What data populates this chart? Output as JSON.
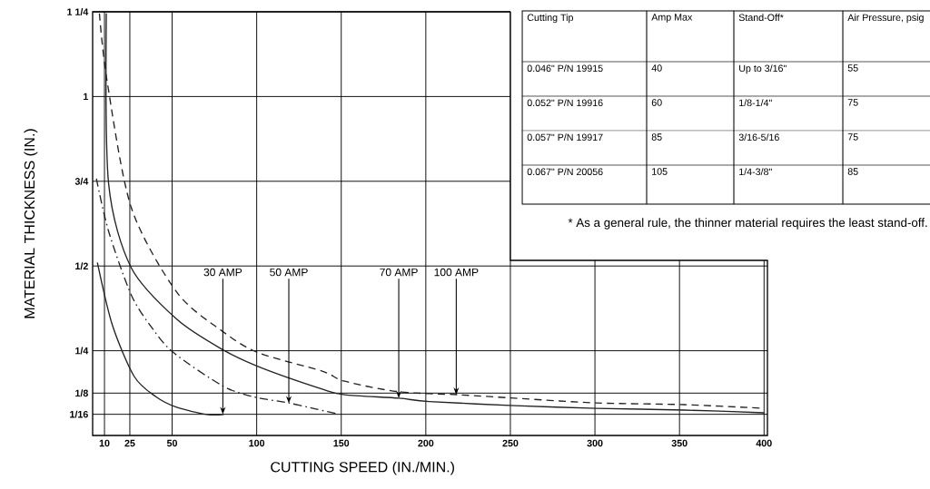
{
  "chart_data": [
    {
      "type": "line",
      "xlabel": "CUTTING SPEED (IN./MIN.)",
      "ylabel": "MATERIAL THICKNESS (IN.)",
      "xlim": [
        3,
        402
      ],
      "ylim": [
        0,
        1.25
      ],
      "xticks": [
        10,
        25,
        50,
        100,
        150,
        200,
        250,
        300,
        350,
        400
      ],
      "yticks": [
        {
          "value": 0.0625,
          "label": "1/16"
        },
        {
          "value": 0.125,
          "label": "1/8"
        },
        {
          "value": 0.25,
          "label": "1/4"
        },
        {
          "value": 0.5,
          "label": "1/2"
        },
        {
          "value": 0.75,
          "label": "3/4"
        },
        {
          "value": 1,
          "label": "1"
        },
        {
          "value": 1.25,
          "label": "1 1/4"
        }
      ],
      "grid": true,
      "series": [
        {
          "color": "#222222",
          "line_style": "solid",
          "x": [
            5.8,
            14.7,
            27.6,
            40.2,
            52.7,
            70.6,
            80.5
          ],
          "values": [
            0.51,
            0.325,
            0.174,
            0.115,
            0.083,
            0.062,
            0.062
          ]
        },
        {
          "color": "#222222",
          "line_style": "dashdot",
          "x": [
            5.2,
            12.4,
            25.8,
            38.3,
            50.9,
            79.6,
            97.3,
            118.8,
            135,
            146.8
          ],
          "values": [
            0.758,
            0.603,
            0.415,
            0.316,
            0.244,
            0.147,
            0.115,
            0.096,
            0.078,
            0.065
          ]
        },
        {
          "color": "#222222",
          "line_style": "solid",
          "x": [
            11.1,
            12.4,
            25.8,
            52.7,
            79.6,
            102.7,
            138.7,
            152,
            184,
            202,
            252.7,
            301,
            352.7,
            400
          ],
          "values": [
            1.245,
            0.745,
            0.495,
            0.343,
            0.254,
            0.2,
            0.137,
            0.12,
            0.11,
            0.1,
            0.088,
            0.08,
            0.075,
            0.067
          ]
        },
        {
          "color": "#222222",
          "line_style": "dashed",
          "x": [
            7,
            11.5,
            25.8,
            52.7,
            79.6,
            101,
            138.7,
            152,
            184,
            220,
            252.7,
            301,
            352.7,
            400
          ],
          "values": [
            1.245,
            1.047,
            0.673,
            0.423,
            0.308,
            0.244,
            0.19,
            0.16,
            0.129,
            0.12,
            0.11,
            0.096,
            0.091,
            0.08
          ]
        }
      ],
      "annotations": [
        {
          "text": "30 AMP",
          "x": 80,
          "y": 0.0625
        },
        {
          "text": "50 AMP",
          "x": 119,
          "y": 0.095
        },
        {
          "text": "70 AMP",
          "x": 184,
          "y": 0.11
        },
        {
          "text": "100 AMP",
          "x": 218,
          "y": 0.12
        }
      ]
    },
    {
      "type": "other",
      "categories": [
        "Cutting Tip",
        "Amp Max",
        "Stand-Off*",
        "Air Pressure, psig"
      ],
      "annotations": [
        "0.046\" P/N 19915",
        "40",
        "Up to 3/16\"",
        "55",
        "0.052\" P/N 19916",
        "60",
        "1/8-1/4\"",
        "75",
        "0.057\" P/N 19917",
        "85",
        "3/16-5/16",
        "75",
        "0.067\" P/N 20056",
        "105",
        "1/4-3/8\"",
        "85",
        "* As a general rule, the thinner material requires the least stand-off."
      ]
    }
  ]
}
